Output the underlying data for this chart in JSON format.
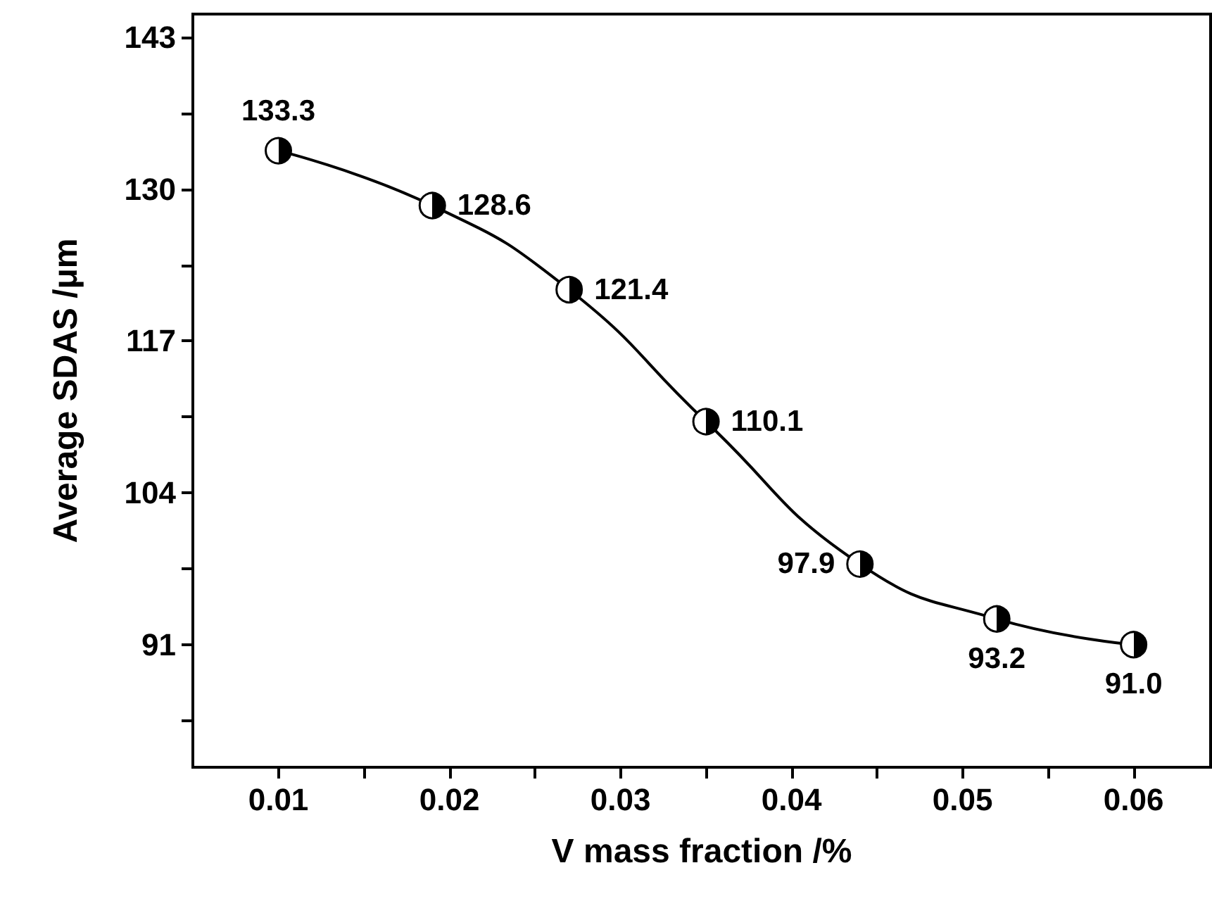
{
  "chart_data": {
    "type": "line",
    "xlabel": "V mass fraction /%",
    "ylabel": "Average SDAS /μm",
    "x": [
      0.01,
      0.019,
      0.027,
      0.035,
      0.044,
      0.052,
      0.06
    ],
    "series": [
      {
        "color": "#000000",
        "values": [
          133.3,
          128.6,
          121.4,
          110.1,
          97.9,
          93.2,
          91.0
        ],
        "value_labels": [
          "133.3",
          "128.6",
          "121.4",
          "110.1",
          "97.9",
          "93.2",
          "91.0"
        ]
      }
    ],
    "xlim": [
      0.005,
      0.0645
    ],
    "xticks": [
      0.01,
      {
        "value": 0.015,
        "label": null
      },
      0.02,
      {
        "value": 0.025,
        "label": null
      },
      0.03,
      {
        "value": 0.035,
        "label": null
      },
      0.04,
      {
        "value": 0.045,
        "label": null
      },
      0.05,
      {
        "value": 0.055,
        "label": null
      },
      0.06
    ],
    "ylim": [
      80.5,
      145
    ],
    "yticks": [
      {
        "value": 84.5,
        "label": null
      },
      91,
      {
        "value": 97.5,
        "label": null
      },
      104,
      {
        "value": 110.5,
        "label": null
      },
      117,
      {
        "value": 123.5,
        "label": null
      },
      130,
      {
        "value": 136.5,
        "label": null
      },
      143
    ],
    "marker": "circle",
    "line_style": "solid",
    "grid": false
  }
}
